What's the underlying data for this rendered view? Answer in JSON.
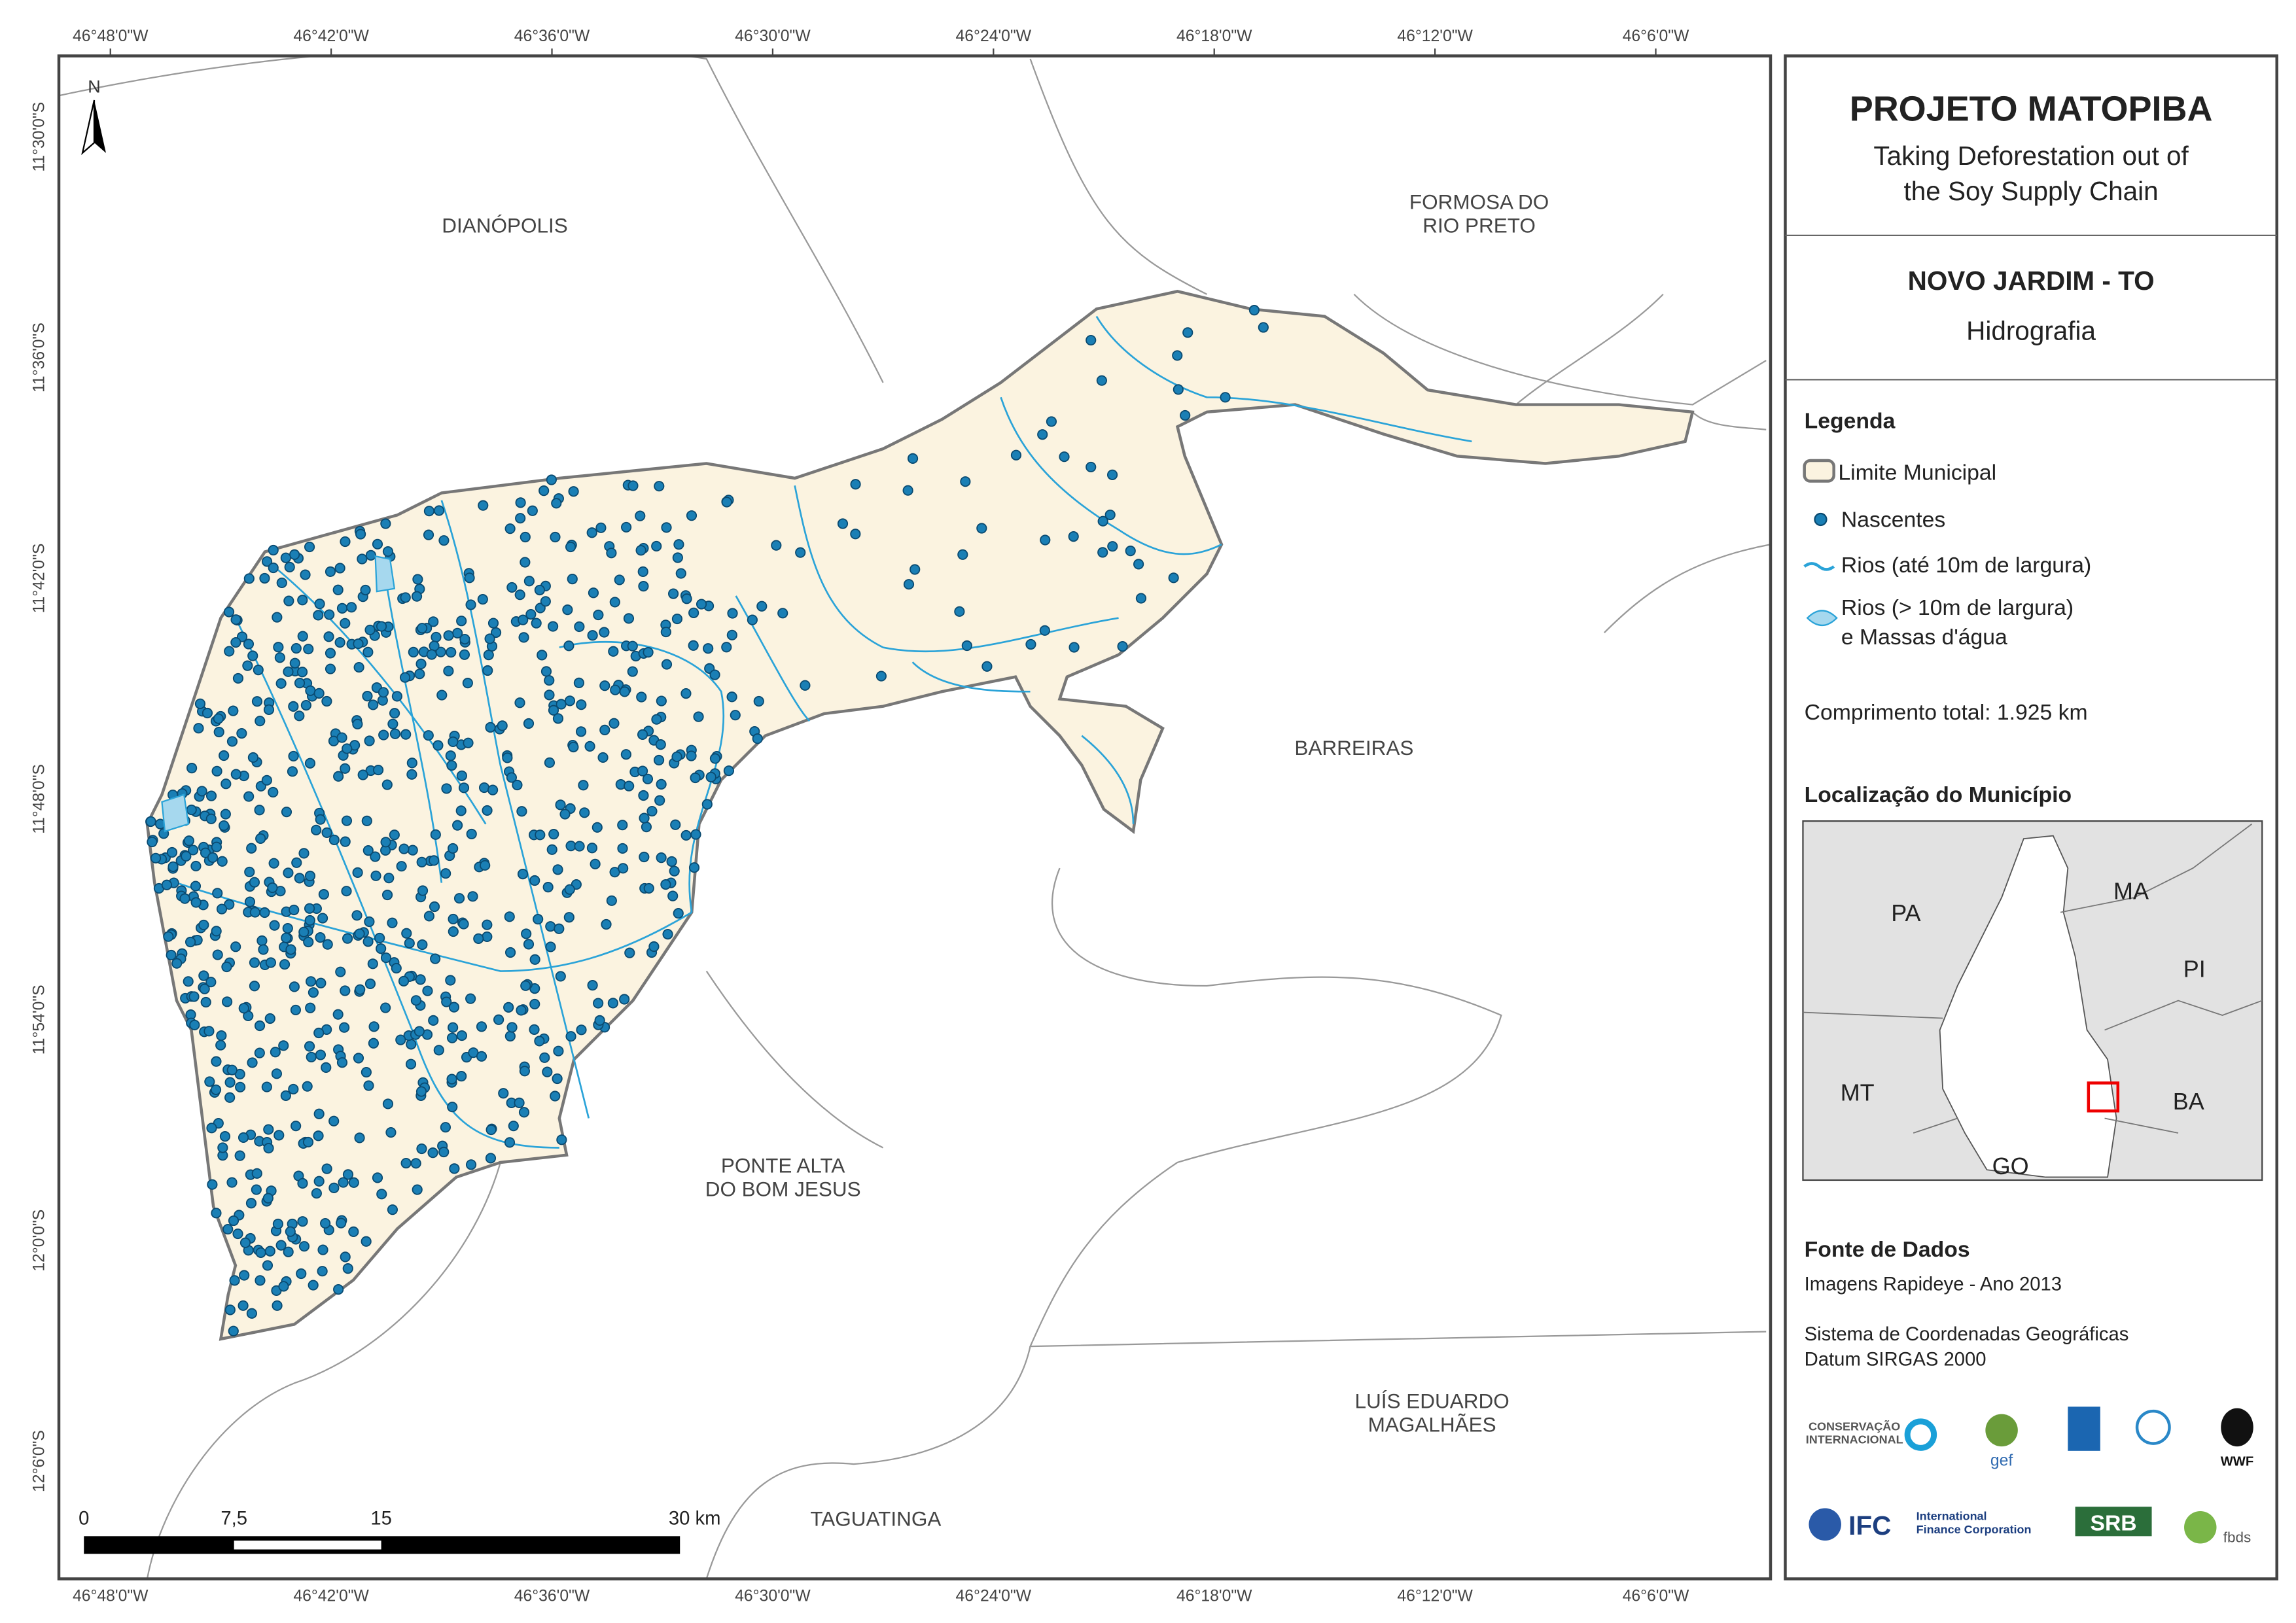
{
  "map": {
    "lon_labels": [
      "46°48'0\"W",
      "46°42'0\"W",
      "46°36'0\"W",
      "46°30'0\"W",
      "46°24'0\"W",
      "46°18'0\"W",
      "46°12'0\"W",
      "46°6'0\"W"
    ],
    "lat_labels": [
      "11°30'0\"S",
      "11°36'0\"S",
      "11°42'0\"S",
      "11°48'0\"S",
      "11°54'0\"S",
      "12°0'0\"S",
      "12°6'0\"S"
    ],
    "north": "N",
    "places": [
      [
        "DIANÓPOLIS"
      ],
      [
        "FORMOSA DO",
        "RIO PRETO"
      ],
      [
        "BARREIRAS"
      ],
      [
        "PONTE ALTA",
        "DO BOM JESUS"
      ],
      [
        "LUÍS EDUARDO",
        "MAGALHÃES"
      ],
      [
        "TAGUATINGA"
      ]
    ],
    "scale": [
      "0",
      "7,5",
      "15",
      "30 km"
    ]
  },
  "panel": {
    "title": "PROJETO MATOPIBA",
    "subtitle": [
      "Taking Deforestation out of",
      "the Soy Supply Chain"
    ],
    "municipality": "NOVO JARDIM - TO",
    "theme": "Hidrografia",
    "legend_title": "Legenda",
    "legend_items": [
      [
        "Limite Municipal"
      ],
      [
        "Nascentes"
      ],
      [
        "Rios (até 10m de largura)"
      ],
      [
        "Rios (> 10m de largura)",
        "e Massas d'água"
      ]
    ],
    "total_length": "Comprimento total:  1.925 km",
    "location_title": "Localização do Município",
    "states": [
      "PA",
      "MA",
      "PI",
      "MT",
      "BA",
      "GO"
    ],
    "sources_title": "Fonte de Dados",
    "sources": [
      "Imagens Rapideye - Ano 2013",
      "Sistema de Coordenadas Geográficas",
      "Datum SIRGAS 2000"
    ],
    "logos": [
      "CONSERVAÇÃO",
      "INTERNACIONAL",
      "gef",
      "WWF",
      "IFC",
      "International",
      "Finance Corporation",
      "SRB",
      "fbds"
    ]
  }
}
